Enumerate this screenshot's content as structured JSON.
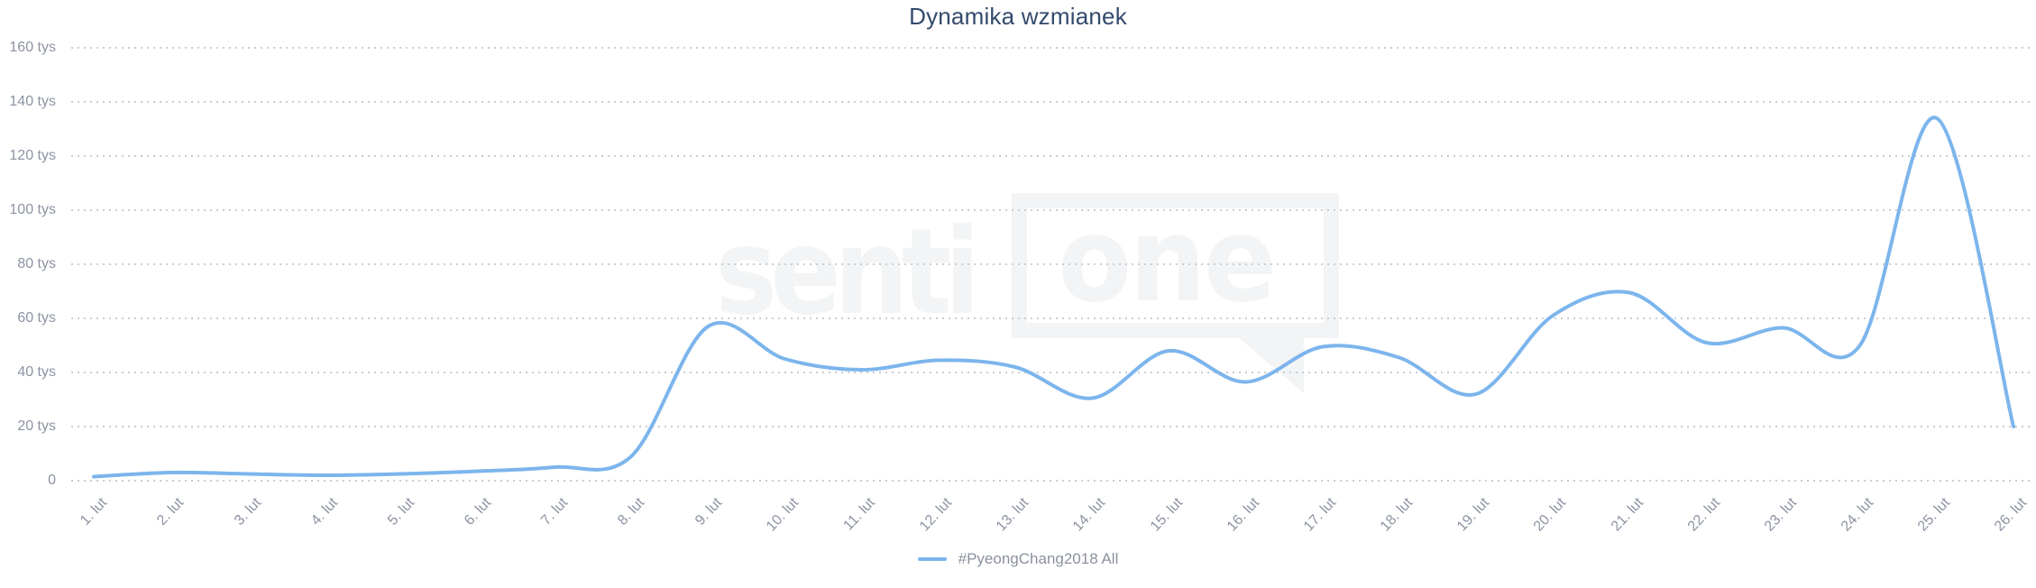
{
  "title": "Dynamika wzmianek",
  "legend": {
    "label": "#PyeongChang2018 All"
  },
  "watermark": {
    "part1": "senti",
    "part2": "one"
  },
  "colors": {
    "line": "#7cb5ec",
    "title": "#334a6d",
    "axis_label": "#8d93a3",
    "legend_text": "#8b919f",
    "gridline": "#c9cdd2",
    "watermark": "#f3f4f5",
    "background": "#ffffff"
  },
  "chart_data": {
    "type": "line",
    "title": "Dynamika wzmianek",
    "categories": [
      "1. lut",
      "2. lut",
      "3. lut",
      "4. lut",
      "5. lut",
      "6. lut",
      "7. lut",
      "8. lut",
      "9. lut",
      "10. lut",
      "11. lut",
      "12. lut",
      "13. lut",
      "14. lut",
      "15. lut",
      "16. lut",
      "17. lut",
      "18. lut",
      "19. lut",
      "20. lut",
      "21. lut",
      "22. lut",
      "23. lut",
      "24. lut",
      "25. lut",
      "26. lut"
    ],
    "series": [
      {
        "name": "#PyeongChang2018 All",
        "values": [
          1.5,
          3,
          2.5,
          2,
          2.5,
          3.5,
          5,
          9,
          57,
          45,
          41,
          44.5,
          42,
          30.5,
          48,
          36.5,
          49.5,
          45.5,
          32,
          61,
          69.5,
          51,
          56.5,
          50,
          134,
          20
        ]
      }
    ],
    "values_unit": "tys",
    "xlabel": "",
    "ylabel": "",
    "ylim": [
      0,
      160
    ],
    "y_tick_values": [
      0,
      20,
      40,
      60,
      80,
      100,
      120,
      140,
      160
    ],
    "y_tick_labels": [
      "0",
      "20 tys",
      "40 tys",
      "60 tys",
      "80 tys",
      "100 tys",
      "120 tys",
      "140 tys",
      "160 tys"
    ],
    "grid": "horizontal-dotted",
    "line_style": "smooth",
    "legend_position": "bottom-center"
  }
}
